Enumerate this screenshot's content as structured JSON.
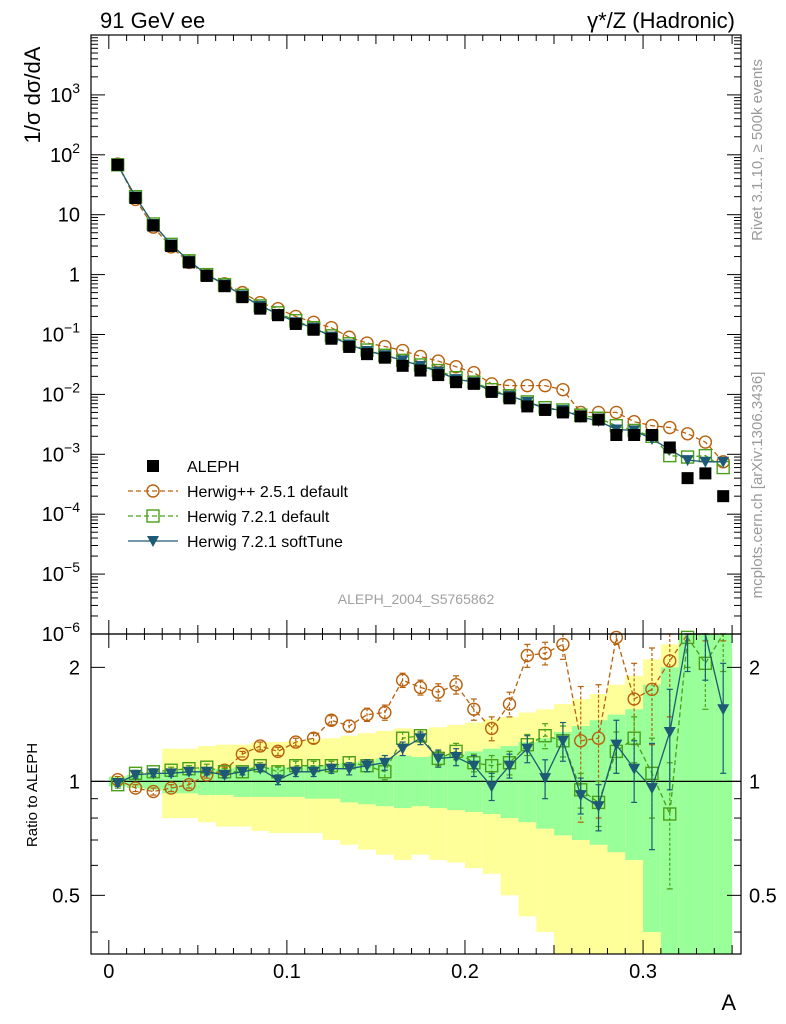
{
  "header": {
    "left": "91 GeV ee",
    "right": "γ*/Z (Hadronic)"
  },
  "side": {
    "rivet": "Rivet 3.1.10, ≥ 500k events",
    "mcplots": "mcplots.cern.ch [arXiv:1306.3436]"
  },
  "analysis_id": "ALEPH_2004_S5765862",
  "chart_data": {
    "type": "line",
    "xlabel": "A",
    "ylabel": "1/σ dσ/dA",
    "ratio_ylabel": "Ratio to ALEPH",
    "xlim": [
      -0.01,
      0.355
    ],
    "ylim": [
      1e-06,
      10000
    ],
    "yscale": "log",
    "ratio_ylim": [
      0.35,
      2.45
    ],
    "ratio_yscale": "log",
    "x_ticks": [
      0,
      0.1,
      0.2,
      0.3
    ],
    "x_tick_labels": [
      "0",
      "0.1",
      "0.2",
      "0.3"
    ],
    "y_ticks": [
      1e-06,
      1e-05,
      0.0001,
      0.001,
      0.01,
      0.1,
      1,
      10,
      100,
      1000
    ],
    "y_tick_labels": [
      "10^-6",
      "10^-5",
      "10^-4",
      "10^-3",
      "10^-2",
      "10^-1",
      "1",
      "10",
      "10^2",
      "10^3"
    ],
    "ratio_ticks": [
      0.5,
      1,
      2
    ],
    "ratio_tick_labels": [
      "0.5",
      "1",
      "2"
    ],
    "legend_position": "lower-left",
    "colors": {
      "data": "#000000",
      "herwigpp": "#b8600c",
      "herwig721": "#4aa019",
      "softtune": "#1e5a75",
      "band_inner": "#99ff99",
      "band_outer": "#ffff99"
    },
    "x": [
      0.005,
      0.015,
      0.025,
      0.035,
      0.045,
      0.055,
      0.065,
      0.075,
      0.085,
      0.095,
      0.105,
      0.115,
      0.125,
      0.135,
      0.145,
      0.155,
      0.165,
      0.175,
      0.185,
      0.195,
      0.205,
      0.215,
      0.225,
      0.235,
      0.245,
      0.255,
      0.265,
      0.275,
      0.285,
      0.295,
      0.305,
      0.315,
      0.325,
      0.335,
      0.345
    ],
    "bins": [
      [
        0,
        0.01
      ],
      [
        0.01,
        0.02
      ],
      [
        0.02,
        0.03
      ],
      [
        0.03,
        0.04
      ],
      [
        0.04,
        0.05
      ],
      [
        0.05,
        0.06
      ],
      [
        0.06,
        0.07
      ],
      [
        0.07,
        0.08
      ],
      [
        0.08,
        0.09
      ],
      [
        0.09,
        0.1
      ],
      [
        0.1,
        0.11
      ],
      [
        0.11,
        0.12
      ],
      [
        0.12,
        0.13
      ],
      [
        0.13,
        0.14
      ],
      [
        0.14,
        0.15
      ],
      [
        0.15,
        0.16
      ],
      [
        0.16,
        0.17
      ],
      [
        0.17,
        0.18
      ],
      [
        0.18,
        0.19
      ],
      [
        0.19,
        0.2
      ],
      [
        0.2,
        0.21
      ],
      [
        0.21,
        0.22
      ],
      [
        0.22,
        0.23
      ],
      [
        0.23,
        0.24
      ],
      [
        0.24,
        0.25
      ],
      [
        0.25,
        0.26
      ],
      [
        0.26,
        0.27
      ],
      [
        0.27,
        0.28
      ],
      [
        0.28,
        0.29
      ],
      [
        0.29,
        0.3
      ],
      [
        0.3,
        0.31
      ],
      [
        0.31,
        0.32
      ],
      [
        0.32,
        0.33
      ],
      [
        0.33,
        0.34
      ],
      [
        0.34,
        0.35
      ]
    ],
    "data": {
      "name": "ALEPH",
      "values": [
        68,
        19,
        6.6,
        3.0,
        1.6,
        0.95,
        0.64,
        0.42,
        0.27,
        0.21,
        0.15,
        0.12,
        0.085,
        0.062,
        0.047,
        0.041,
        0.03,
        0.025,
        0.021,
        0.016,
        0.015,
        0.011,
        0.0086,
        0.0063,
        0.0055,
        0.005,
        0.0043,
        0.0038,
        0.0021,
        0.0021,
        0.0021,
        0.0013,
        0.0004,
        0.00048,
        0.0002
      ]
    },
    "band_inner": {
      "lo": [
        0.97,
        0.96,
        0.95,
        0.93,
        0.93,
        0.92,
        0.92,
        0.91,
        0.91,
        0.91,
        0.91,
        0.9,
        0.9,
        0.88,
        0.87,
        0.86,
        0.85,
        0.86,
        0.85,
        0.84,
        0.83,
        0.82,
        0.8,
        0.78,
        0.75,
        0.72,
        0.7,
        0.68,
        0.65,
        0.62,
        0.4,
        0.35,
        0.35,
        0.35,
        0.35
      ],
      "hi": [
        1.03,
        1.04,
        1.05,
        1.07,
        1.07,
        1.08,
        1.08,
        1.09,
        1.09,
        1.09,
        1.09,
        1.1,
        1.1,
        1.12,
        1.13,
        1.15,
        1.17,
        1.16,
        1.17,
        1.18,
        1.2,
        1.22,
        1.24,
        1.27,
        1.3,
        1.35,
        1.4,
        1.45,
        1.5,
        1.55,
        1.8,
        2.0,
        2.45,
        2.45,
        2.45
      ]
    },
    "band_outer": {
      "lo": [
        1.0,
        1.0,
        1.0,
        0.8,
        0.8,
        0.78,
        0.76,
        0.76,
        0.74,
        0.73,
        0.73,
        0.73,
        0.7,
        0.68,
        0.66,
        0.64,
        0.62,
        0.64,
        0.62,
        0.61,
        0.59,
        0.57,
        0.5,
        0.44,
        0.4,
        0.35,
        0.35,
        0.35,
        0.35,
        0.35,
        0.35,
        0.35,
        0.35,
        0.35,
        0.35
      ],
      "hi": [
        1.0,
        1.0,
        1.0,
        1.22,
        1.22,
        1.24,
        1.25,
        1.25,
        1.27,
        1.27,
        1.28,
        1.29,
        1.3,
        1.32,
        1.34,
        1.36,
        1.38,
        1.37,
        1.39,
        1.41,
        1.43,
        1.46,
        1.48,
        1.52,
        1.55,
        1.6,
        1.65,
        1.7,
        1.8,
        1.9,
        2.1,
        2.3,
        2.45,
        2.45,
        2.45
      ]
    },
    "series": [
      {
        "name": "Herwig++ 2.5.1 default",
        "key": "herwigpp",
        "marker": "circle",
        "line": "dashed",
        "values": [
          70,
          18,
          6.2,
          2.9,
          1.6,
          0.98,
          0.7,
          0.5,
          0.34,
          0.27,
          0.2,
          0.16,
          0.13,
          0.09,
          0.072,
          0.063,
          0.054,
          0.043,
          0.036,
          0.029,
          0.023,
          0.015,
          0.014,
          0.014,
          0.014,
          0.012,
          0.005,
          0.005,
          0.005,
          0.0035,
          0.003,
          0.0028,
          0.0022,
          0.0016,
          0.00075
        ],
        "ratio": [
          1.01,
          0.96,
          0.94,
          0.96,
          0.98,
          1.04,
          1.07,
          1.18,
          1.24,
          1.2,
          1.27,
          1.3,
          1.45,
          1.4,
          1.5,
          1.52,
          1.85,
          1.77,
          1.72,
          1.8,
          1.55,
          1.38,
          1.6,
          2.15,
          2.18,
          2.3,
          1.28,
          1.3,
          2.4,
          1.65,
          1.75,
          2.08,
          2.45,
          2.45,
          2.45
        ],
        "ratio_err": [
          0.02,
          0.02,
          0.02,
          0.02,
          0.02,
          0.02,
          0.02,
          0.02,
          0.03,
          0.03,
          0.03,
          0.04,
          0.04,
          0.05,
          0.06,
          0.07,
          0.08,
          0.08,
          0.09,
          0.1,
          0.1,
          0.1,
          0.12,
          0.15,
          0.15,
          0.2,
          0.5,
          0.5,
          0.1,
          0.4,
          0.5,
          0.6,
          0.1,
          0.1,
          0.1
        ]
      },
      {
        "name": "Herwig 7.2.1 default",
        "key": "herwig721",
        "marker": "square",
        "line": "dashed",
        "values": [
          68,
          20,
          7.0,
          3.2,
          1.7,
          1.0,
          0.68,
          0.45,
          0.3,
          0.23,
          0.17,
          0.13,
          0.095,
          0.07,
          0.055,
          0.045,
          0.037,
          0.031,
          0.025,
          0.019,
          0.016,
          0.012,
          0.0095,
          0.0075,
          0.006,
          0.0055,
          0.0045,
          0.004,
          0.003,
          0.0025,
          0.002,
          0.00095,
          0.0009,
          0.00095,
          0.0006
        ],
        "ratio": [
          0.98,
          1.05,
          1.06,
          1.07,
          1.08,
          1.09,
          1.06,
          1.06,
          1.1,
          1.06,
          1.1,
          1.1,
          1.1,
          1.12,
          1.1,
          1.06,
          1.3,
          1.32,
          1.15,
          1.2,
          1.12,
          1.1,
          1.12,
          1.25,
          1.32,
          1.28,
          0.95,
          0.88,
          1.2,
          1.3,
          1.05,
          0.82,
          2.4,
          2.05,
          2.45
        ],
        "ratio_err": [
          0.02,
          0.02,
          0.02,
          0.02,
          0.02,
          0.02,
          0.02,
          0.02,
          0.02,
          0.03,
          0.03,
          0.03,
          0.03,
          0.04,
          0.04,
          0.05,
          0.05,
          0.05,
          0.05,
          0.06,
          0.06,
          0.07,
          0.08,
          0.08,
          0.1,
          0.12,
          0.1,
          0.12,
          0.15,
          0.18,
          0.25,
          0.3,
          0.4,
          0.5,
          0.5
        ]
      },
      {
        "name": "Herwig 7.2.1 softTune",
        "key": "softtune",
        "marker": "triangle-down",
        "line": "solid",
        "values": [
          68,
          20,
          7.0,
          3.2,
          1.7,
          1.0,
          0.68,
          0.45,
          0.3,
          0.22,
          0.16,
          0.13,
          0.092,
          0.068,
          0.053,
          0.045,
          0.037,
          0.03,
          0.024,
          0.018,
          0.016,
          0.011,
          0.0095,
          0.0075,
          0.0058,
          0.0055,
          0.0042,
          0.0036,
          0.0026,
          0.0025,
          0.0018,
          0.0012,
          0.0008,
          0.00075,
          0.00075
        ],
        "ratio": [
          0.99,
          1.04,
          1.05,
          1.05,
          1.06,
          1.06,
          1.04,
          1.06,
          1.08,
          1.01,
          1.06,
          1.06,
          1.08,
          1.08,
          1.1,
          1.12,
          1.22,
          1.3,
          1.15,
          1.16,
          1.1,
          0.97,
          1.1,
          1.22,
          1.02,
          1.28,
          0.92,
          0.86,
          1.25,
          1.08,
          0.96,
          1.35,
          2.45,
          2.45,
          1.55
        ],
        "ratio_err": [
          0.02,
          0.02,
          0.02,
          0.02,
          0.02,
          0.02,
          0.02,
          0.02,
          0.02,
          0.03,
          0.03,
          0.03,
          0.03,
          0.04,
          0.04,
          0.05,
          0.05,
          0.05,
          0.06,
          0.06,
          0.07,
          0.08,
          0.08,
          0.1,
          0.12,
          0.15,
          0.1,
          0.12,
          0.2,
          0.2,
          0.3,
          0.4,
          0.5,
          0.6,
          0.5
        ]
      }
    ]
  }
}
